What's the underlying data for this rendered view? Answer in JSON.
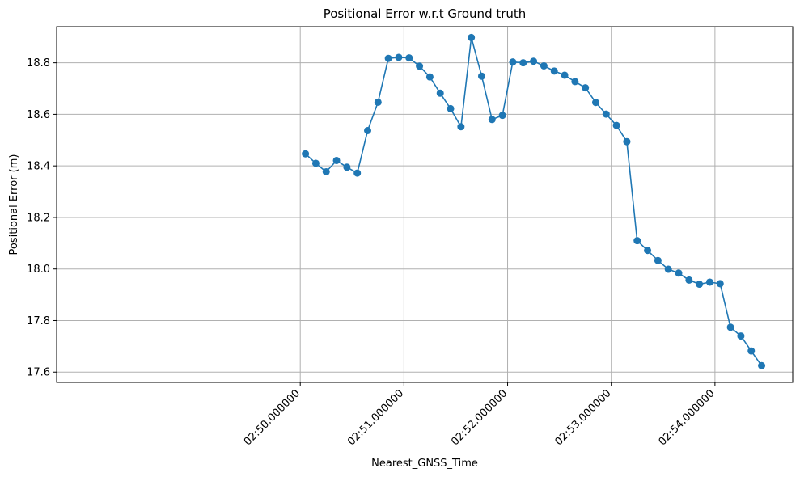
{
  "colors": {
    "series": "#1f77b4",
    "grid": "#b0b0b0",
    "axis": "#000000",
    "background": "#ffffff"
  },
  "chart_data": {
    "type": "line",
    "title": "Positional Error w.r.t Ground truth",
    "xlabel": "Nearest_GNSS_Time",
    "ylabel": "Positional Error (m)",
    "grid": true,
    "marker": "circle",
    "x_unit": "seconds",
    "xlim": [
      167.65,
      174.75
    ],
    "ylim": [
      17.56,
      18.94
    ],
    "x_ticks": [
      {
        "value": 170,
        "label": "02:50.000000"
      },
      {
        "value": 171,
        "label": "02:51.000000"
      },
      {
        "value": 172,
        "label": "02:52.000000"
      },
      {
        "value": 173,
        "label": "02:53.000000"
      },
      {
        "value": 174,
        "label": "02:54.000000"
      }
    ],
    "y_ticks": [
      {
        "value": 17.6,
        "label": "17.6"
      },
      {
        "value": 17.8,
        "label": "17.8"
      },
      {
        "value": 18.0,
        "label": "18.0"
      },
      {
        "value": 18.2,
        "label": "18.2"
      },
      {
        "value": 18.4,
        "label": "18.4"
      },
      {
        "value": 18.6,
        "label": "18.6"
      },
      {
        "value": 18.8,
        "label": "18.8"
      }
    ],
    "x": [
      170.05,
      170.15,
      170.25,
      170.35,
      170.45,
      170.55,
      170.65,
      170.75,
      170.85,
      170.95,
      171.05,
      171.15,
      171.25,
      171.35,
      171.45,
      171.55,
      171.65,
      171.75,
      171.85,
      171.95,
      172.05,
      172.15,
      172.25,
      172.35,
      172.45,
      172.55,
      172.65,
      172.75,
      172.85,
      172.95,
      173.05,
      173.15,
      173.25,
      173.35,
      173.45,
      173.55,
      173.65,
      173.75,
      173.85,
      173.95,
      174.05,
      174.15,
      174.25,
      174.35,
      174.45
    ],
    "y": [
      18.447,
      18.41,
      18.377,
      18.421,
      18.395,
      18.372,
      18.537,
      18.647,
      18.817,
      18.821,
      18.819,
      18.787,
      18.745,
      18.682,
      18.622,
      18.552,
      18.898,
      18.748,
      18.58,
      18.596,
      18.803,
      18.8,
      18.806,
      18.788,
      18.768,
      18.752,
      18.727,
      18.703,
      18.646,
      18.601,
      18.557,
      18.494,
      18.11,
      18.072,
      18.033,
      17.999,
      17.984,
      17.957,
      17.941,
      17.949,
      17.943,
      17.774,
      17.74,
      17.682,
      17.625
    ]
  }
}
